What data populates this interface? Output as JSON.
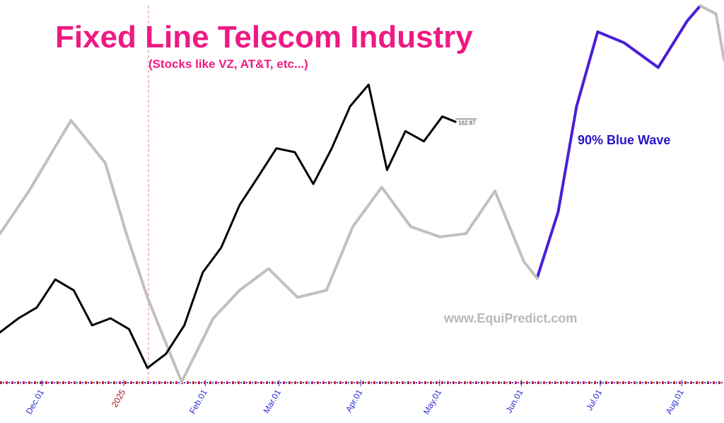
{
  "chart_data": {
    "type": "line",
    "title": "Fixed Line Telecom Industry",
    "subtitle": "(Stocks like VZ, AT&T, etc...)",
    "annotations": [
      "90% Blue Wave",
      "www.EquiPredict.com"
    ],
    "xlim": [
      "2024-11-15",
      "2025-08-17"
    ],
    "ylim": [
      122,
      182
    ],
    "xticks": [
      {
        "value": "2024-12-01",
        "label": "Dec.01",
        "color": "#2b2bd0"
      },
      {
        "value": "2025-01-01",
        "label": "2025",
        "color": "#a01020"
      },
      {
        "value": "2025-02-01",
        "label": "Feb.01",
        "color": "#2b2bd0"
      },
      {
        "value": "2025-03-01",
        "label": "Mar.01",
        "color": "#2b2bd0"
      },
      {
        "value": "2025-04-01",
        "label": "Apr.01",
        "color": "#2b2bd0"
      },
      {
        "value": "2025-05-01",
        "label": "May.01",
        "color": "#2b2bd0"
      },
      {
        "value": "2025-06-01",
        "label": "Jun.01",
        "color": "#2b2bd0"
      },
      {
        "value": "2025-07-01",
        "label": "Jul.01",
        "color": "#2b2bd0"
      },
      {
        "value": "2025-08-01",
        "label": "Aug.01",
        "color": "#2b2bd0"
      }
    ],
    "series": [
      {
        "color": "#000000",
        "width": 3,
        "x": [
          "2024-11-15",
          "2024-11-22",
          "2024-11-29",
          "2024-12-06",
          "2024-12-13",
          "2024-12-20",
          "2024-12-27",
          "2025-01-03",
          "2025-01-10",
          "2025-01-17",
          "2025-01-24",
          "2025-01-31",
          "2025-02-07",
          "2025-02-14",
          "2025-02-21",
          "2025-02-28",
          "2025-03-07",
          "2025-03-14",
          "2025-03-21",
          "2025-03-28",
          "2025-04-04",
          "2025-04-11",
          "2025-04-18",
          "2025-04-25",
          "2025-05-02",
          "2025-05-07"
        ],
        "values": [
          129.8,
          132,
          133.7,
          138.1,
          136.4,
          130.9,
          132,
          130.3,
          124.2,
          126.4,
          130.9,
          139.2,
          143.1,
          149.8,
          154.2,
          158.7,
          158.1,
          153.1,
          158.7,
          165.3,
          168.7,
          155.3,
          161.4,
          159.8,
          163.7,
          162.87
        ]
      },
      {
        "color": "#c0c0c0",
        "width": 4,
        "x": [
          "2024-11-15",
          "2024-11-26",
          "2024-12-12",
          "2024-12-25",
          "2025-01-02",
          "2025-01-10",
          "2025-01-23",
          "2025-02-04",
          "2025-02-14",
          "2025-02-25",
          "2025-03-08",
          "2025-03-19",
          "2025-03-29",
          "2025-04-09",
          "2025-04-20",
          "2025-05-01",
          "2025-05-11",
          "2025-05-22",
          "2025-06-02",
          "2025-06-07",
          "2025-06-15",
          "2025-06-22",
          "2025-06-30",
          "2025-07-10",
          "2025-07-23",
          "2025-08-03",
          "2025-08-08",
          "2025-08-14",
          "2025-08-17"
        ],
        "values": [
          145.3,
          152,
          163.1,
          156.4,
          145.3,
          135.3,
          122,
          132,
          136.4,
          139.8,
          135.3,
          136.4,
          146.4,
          152.6,
          146.4,
          144.8,
          145.3,
          152,
          140.9,
          138.3,
          null,
          null,
          null,
          null,
          null,
          null,
          181.1,
          179.8,
          172.6
        ]
      },
      {
        "color": "#4b1ed8",
        "width": 4,
        "x": [
          "2024-11-15",
          "2024-11-26",
          "2024-12-12",
          "2024-12-25",
          "2025-01-02",
          "2025-01-10",
          "2025-01-23",
          "2025-02-04",
          "2025-02-14",
          "2025-02-25",
          "2025-03-08",
          "2025-03-19",
          "2025-03-29",
          "2025-04-09",
          "2025-04-20",
          "2025-05-01",
          "2025-05-11",
          "2025-05-22",
          "2025-06-02",
          "2025-06-07",
          "2025-06-15",
          "2025-06-22",
          "2025-06-30",
          "2025-07-10",
          "2025-07-23",
          "2025-08-03",
          "2025-08-08",
          "2025-08-14",
          "2025-08-17"
        ],
        "values": [
          null,
          null,
          null,
          null,
          null,
          null,
          null,
          null,
          null,
          null,
          null,
          null,
          null,
          null,
          null,
          null,
          null,
          null,
          null,
          138.3,
          148.7,
          165.3,
          177,
          175.3,
          171.4,
          178.7,
          181.1,
          null,
          null
        ]
      }
    ]
  }
}
